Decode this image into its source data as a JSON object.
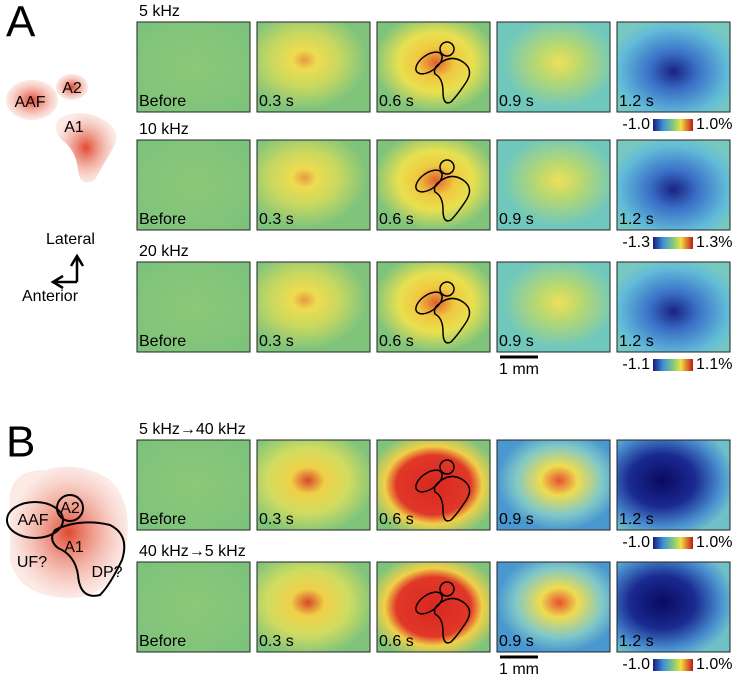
{
  "panel_a": {
    "label": "A",
    "schematic": {
      "areas": [
        "AAF",
        "A2",
        "A1"
      ],
      "axes": [
        "Lateral",
        "Anterior"
      ]
    },
    "rows": [
      {
        "title": "5 kHz",
        "frames": [
          "Before",
          "0.3 s",
          "0.6 s",
          "0.9 s",
          "1.2 s"
        ],
        "colorbar": [
          "-1.0",
          "1.0%"
        ]
      },
      {
        "title": "10 kHz",
        "frames": [
          "Before",
          "0.3 s",
          "0.6 s",
          "0.9 s",
          "1.2 s"
        ],
        "colorbar": [
          "-1.3",
          "1.3%"
        ]
      },
      {
        "title": "20 kHz",
        "frames": [
          "Before",
          "0.3 s",
          "0.6 s",
          "0.9 s",
          "1.2 s"
        ],
        "colorbar": [
          "-1.1",
          "1.1%"
        ]
      }
    ],
    "scale_bar": "1 mm"
  },
  "panel_b": {
    "label": "B",
    "schematic": {
      "areas": [
        "AAF",
        "A2",
        "A1",
        "UF?",
        "DP?"
      ]
    },
    "rows": [
      {
        "title": "5 kHz→40 kHz",
        "frames": [
          "Before",
          "0.3 s",
          "0.6 s",
          "0.9 s",
          "1.2 s"
        ],
        "colorbar": [
          "-1.0",
          "1.0%"
        ]
      },
      {
        "title": "40 kHz→5 kHz",
        "frames": [
          "Before",
          "0.3 s",
          "0.6 s",
          "0.9 s",
          "1.2 s"
        ],
        "colorbar": [
          "-1.0",
          "1.0%"
        ]
      }
    ],
    "scale_bar": "1 mm"
  }
}
